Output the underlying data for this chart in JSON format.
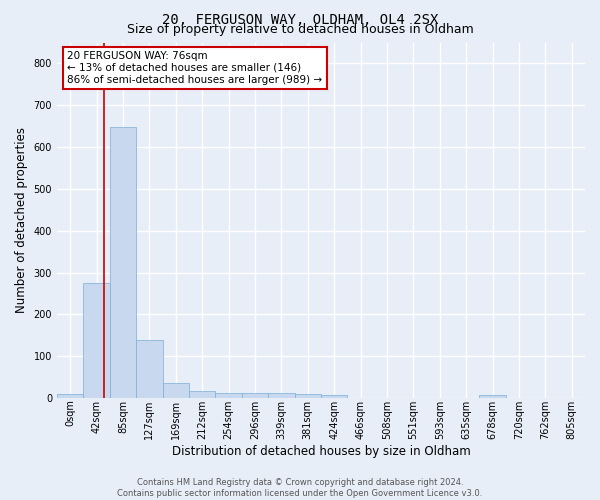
{
  "title_line1": "20, FERGUSON WAY, OLDHAM, OL4 2SX",
  "title_line2": "Size of property relative to detached houses in Oldham",
  "xlabel": "Distribution of detached houses by size in Oldham",
  "ylabel": "Number of detached properties",
  "bar_values": [
    10,
    275,
    648,
    140,
    37,
    18,
    12,
    12,
    12,
    10,
    8,
    0,
    0,
    0,
    0,
    0,
    8,
    0,
    0,
    0
  ],
  "bar_labels": [
    "0sqm",
    "42sqm",
    "85sqm",
    "127sqm",
    "169sqm",
    "212sqm",
    "254sqm",
    "296sqm",
    "339sqm",
    "381sqm",
    "424sqm",
    "466sqm",
    "508sqm",
    "551sqm",
    "593sqm",
    "635sqm",
    "678sqm",
    "720sqm",
    "762sqm",
    "805sqm"
  ],
  "bar_color": "#c8d8ee",
  "bar_edge_color": "#7aaed4",
  "ylim": [
    0,
    850
  ],
  "yticks": [
    0,
    100,
    200,
    300,
    400,
    500,
    600,
    700,
    800
  ],
  "annotation_text": "20 FERGUSON WAY: 76sqm\n← 13% of detached houses are smaller (146)\n86% of semi-detached houses are larger (989) →",
  "annotation_box_color": "#ffffff",
  "annotation_border_color": "#cc0000",
  "footer_text": "Contains HM Land Registry data © Crown copyright and database right 2024.\nContains public sector information licensed under the Open Government Licence v3.0.",
  "background_color": "#e8eef8",
  "grid_color": "#ffffff",
  "title_fontsize": 10,
  "subtitle_fontsize": 9,
  "axis_label_fontsize": 8.5,
  "tick_fontsize": 7
}
